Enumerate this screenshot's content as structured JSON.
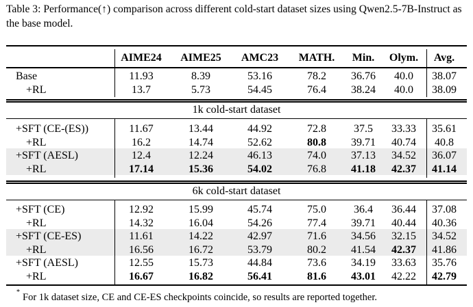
{
  "caption": "Table 3: Performance(↑) comparison across different cold-start dataset sizes using Qwen2.5-7B-Instruct as the base model.",
  "columns": [
    "AIME24",
    "AIME25",
    "AMC23",
    "MATH.",
    "Min.",
    "Olym.",
    "Avg."
  ],
  "base_rows": [
    {
      "label": "Base",
      "values": [
        "11.93",
        "8.39",
        "53.16",
        "78.2",
        "36.76",
        "40.0",
        "38.07"
      ],
      "bold": []
    },
    {
      "label": "+RL",
      "values": [
        "13.7",
        "5.73",
        "54.45",
        "76.4",
        "38.24",
        "40.0",
        "38.09"
      ],
      "bold": []
    }
  ],
  "sections": [
    {
      "title": "1k cold-start dataset",
      "rows": [
        {
          "label": "+SFT (CE-(ES))",
          "values": [
            "11.67",
            "13.44",
            "44.92",
            "72.8",
            "37.5",
            "33.33",
            "35.61"
          ],
          "bold": []
        },
        {
          "label": "+RL",
          "values": [
            "16.2",
            "14.74",
            "52.62",
            "80.8",
            "39.71",
            "40.74",
            "40.8"
          ],
          "bold": [
            3
          ]
        },
        {
          "label": "+SFT (AESL)",
          "values": [
            "12.4",
            "12.24",
            "46.13",
            "74.0",
            "37.13",
            "34.52",
            "36.07"
          ],
          "bold": []
        },
        {
          "label": "+RL",
          "values": [
            "17.14",
            "15.36",
            "54.02",
            "76.8",
            "41.18",
            "42.37",
            "41.14"
          ],
          "bold": [
            0,
            1,
            2,
            4,
            5,
            6
          ]
        }
      ]
    },
    {
      "title": "6k cold-start dataset",
      "rows": [
        {
          "label": "+SFT (CE)",
          "values": [
            "12.92",
            "15.99",
            "45.74",
            "75.0",
            "36.4",
            "36.44",
            "37.08"
          ],
          "bold": []
        },
        {
          "label": "+RL",
          "values": [
            "14.32",
            "16.04",
            "54.26",
            "77.4",
            "39.71",
            "40.44",
            "40.36"
          ],
          "bold": []
        },
        {
          "label": "+SFT (CE-ES)",
          "values": [
            "11.61",
            "14.22",
            "42.97",
            "71.6",
            "34.56",
            "32.15",
            "34.52"
          ],
          "bold": []
        },
        {
          "label": "+RL",
          "values": [
            "16.56",
            "16.72",
            "53.79",
            "80.2",
            "41.54",
            "42.37",
            "41.86"
          ],
          "bold": [
            5
          ]
        },
        {
          "label": "+SFT (AESL)",
          "values": [
            "12.55",
            "15.73",
            "44.84",
            "73.6",
            "34.19",
            "33.63",
            "35.76"
          ],
          "bold": []
        },
        {
          "label": "+RL",
          "values": [
            "16.67",
            "16.82",
            "56.41",
            "81.6",
            "43.01",
            "42.22",
            "42.79"
          ],
          "bold": [
            0,
            1,
            2,
            3,
            4,
            6
          ]
        }
      ]
    }
  ],
  "footnote_marker": "*",
  "footnote": "For 1k dataset size, CE and CE-ES checkpoints coincide, so results are reported together."
}
